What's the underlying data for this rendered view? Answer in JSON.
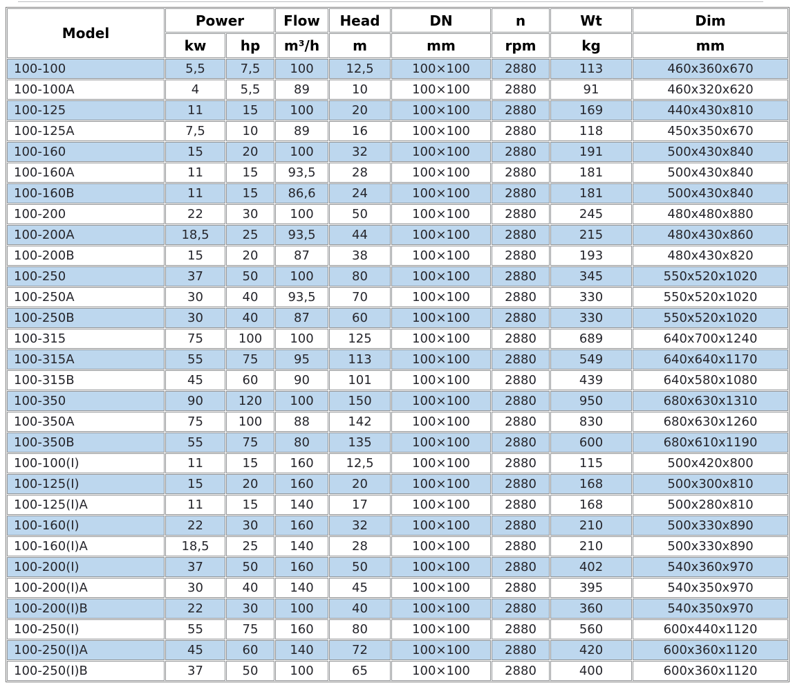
{
  "colors": {
    "row_alt_background": "#bdd7ee",
    "row_background": "#ffffff",
    "border": "#8f9193",
    "header_text": "#000000",
    "body_text": "#25252b"
  },
  "chart_data": {
    "type": "table",
    "header": {
      "model": "Model",
      "power": "Power",
      "power_kw": "kw",
      "power_hp": "hp",
      "flow": "Flow",
      "flow_unit": "m³/h",
      "head": "Head",
      "head_unit": "m",
      "dn": "DN",
      "dn_unit": "mm",
      "n": "n",
      "n_unit": "rpm",
      "wt": "Wt",
      "wt_unit": "kg",
      "dim": "Dim",
      "dim_unit": "mm"
    },
    "columns": [
      {
        "key": "model"
      },
      {
        "key": "power-kw"
      },
      {
        "key": "power-hp"
      },
      {
        "key": "flow-m3h"
      },
      {
        "key": "head-m"
      },
      {
        "key": "dn-mm"
      },
      {
        "key": "n-rpm"
      },
      {
        "key": "wt-kg"
      },
      {
        "key": "dim-mm"
      }
    ],
    "rows": [
      [
        "100-100",
        "5,5",
        "7,5",
        "100",
        "12,5",
        "100×100",
        "2880",
        "113",
        "460x360x670"
      ],
      [
        "100-100A",
        "4",
        "5,5",
        "89",
        "10",
        "100×100",
        "2880",
        "91",
        "460x320x620"
      ],
      [
        "100-125",
        "11",
        "15",
        "100",
        "20",
        "100×100",
        "2880",
        "169",
        "440x430x810"
      ],
      [
        "100-125A",
        "7,5",
        "10",
        "89",
        "16",
        "100×100",
        "2880",
        "118",
        "450x350x670"
      ],
      [
        "100-160",
        "15",
        "20",
        "100",
        "32",
        "100×100",
        "2880",
        "191",
        "500x430x840"
      ],
      [
        "100-160A",
        "11",
        "15",
        "93,5",
        "28",
        "100×100",
        "2880",
        "181",
        "500x430x840"
      ],
      [
        "100-160B",
        "11",
        "15",
        "86,6",
        "24",
        "100×100",
        "2880",
        "181",
        "500x430x840"
      ],
      [
        "100-200",
        "22",
        "30",
        "100",
        "50",
        "100×100",
        "2880",
        "245",
        "480x480x880"
      ],
      [
        "100-200A",
        "18,5",
        "25",
        "93,5",
        "44",
        "100×100",
        "2880",
        "215",
        "480x430x860"
      ],
      [
        "100-200B",
        "15",
        "20",
        "87",
        "38",
        "100×100",
        "2880",
        "193",
        "480x430x820"
      ],
      [
        "100-250",
        "37",
        "50",
        "100",
        "80",
        "100×100",
        "2880",
        "345",
        "550x520x1020"
      ],
      [
        "100-250A",
        "30",
        "40",
        "93,5",
        "70",
        "100×100",
        "2880",
        "330",
        "550x520x1020"
      ],
      [
        "100-250B",
        "30",
        "40",
        "87",
        "60",
        "100×100",
        "2880",
        "330",
        "550x520x1020"
      ],
      [
        "100-315",
        "75",
        "100",
        "100",
        "125",
        "100×100",
        "2880",
        "689",
        "640x700x1240"
      ],
      [
        "100-315A",
        "55",
        "75",
        "95",
        "113",
        "100×100",
        "2880",
        "549",
        "640x640x1170"
      ],
      [
        "100-315B",
        "45",
        "60",
        "90",
        "101",
        "100×100",
        "2880",
        "439",
        "640x580x1080"
      ],
      [
        "100-350",
        "90",
        "120",
        "100",
        "150",
        "100×100",
        "2880",
        "950",
        "680x630x1310"
      ],
      [
        "100-350A",
        "75",
        "100",
        "88",
        "142",
        "100×100",
        "2880",
        "830",
        "680x630x1260"
      ],
      [
        "100-350B",
        "55",
        "75",
        "80",
        "135",
        "100×100",
        "2880",
        "600",
        "680x610x1190"
      ],
      [
        "100-100(I)",
        "11",
        "15",
        "160",
        "12,5",
        "100×100",
        "2880",
        "115",
        "500x420x800"
      ],
      [
        "100-125(I)",
        "15",
        "20",
        "160",
        "20",
        "100×100",
        "2880",
        "168",
        "500x300x810"
      ],
      [
        "100-125(I)A",
        "11",
        "15",
        "140",
        "17",
        "100×100",
        "2880",
        "168",
        "500x280x810"
      ],
      [
        "100-160(I)",
        "22",
        "30",
        "160",
        "32",
        "100×100",
        "2880",
        "210",
        "500x330x890"
      ],
      [
        "100-160(I)A",
        "18,5",
        "25",
        "140",
        "28",
        "100×100",
        "2880",
        "210",
        "500x330x890"
      ],
      [
        "100-200(I)",
        "37",
        "50",
        "160",
        "50",
        "100×100",
        "2880",
        "402",
        "540x360x970"
      ],
      [
        "100-200(I)A",
        "30",
        "40",
        "140",
        "45",
        "100×100",
        "2880",
        "395",
        "540x350x970"
      ],
      [
        "100-200(I)B",
        "22",
        "30",
        "100",
        "40",
        "100×100",
        "2880",
        "360",
        "540x350x970"
      ],
      [
        "100-250(I)",
        "55",
        "75",
        "160",
        "80",
        "100×100",
        "2880",
        "560",
        "600x440x1120"
      ],
      [
        "100-250(I)A",
        "45",
        "60",
        "140",
        "72",
        "100×100",
        "2880",
        "420",
        "600x360x1120"
      ],
      [
        "100-250(I)B",
        "37",
        "50",
        "100",
        "65",
        "100×100",
        "2880",
        "400",
        "600x360x1120"
      ]
    ]
  }
}
